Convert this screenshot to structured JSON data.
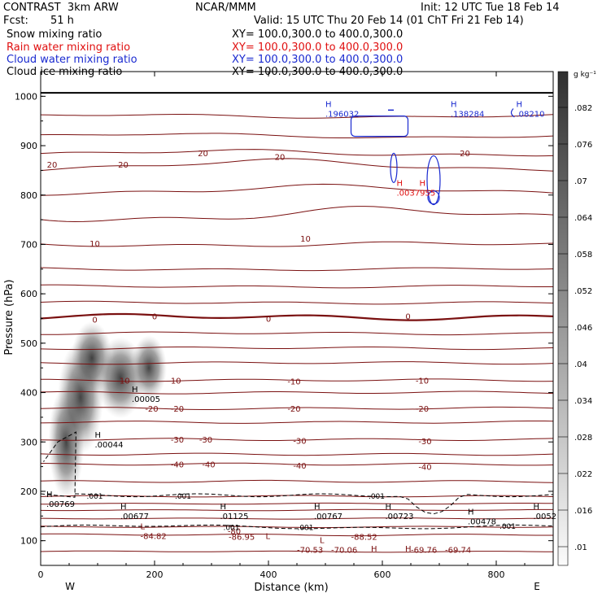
{
  "header": {
    "title_left": "CONTRAST  3km ARW",
    "org": "NCAR/MMM",
    "init": "Init: 12 UTC Tue 18 Feb 14",
    "fcst_label": "Fcst:",
    "fcst_value": "51 h",
    "valid": "Valid: 15 UTC Thu 20 Feb 14 (01 ChT Fri 21 Feb 14)"
  },
  "legend": [
    {
      "name": "Snow mixing ratio",
      "xy": "XY= 100.0,300.0 to 400.0,300.0",
      "color": "#000000"
    },
    {
      "name": "Rain water mixing ratio",
      "xy": "XY= 100.0,300.0 to 400.0,300.0",
      "color": "#e01010"
    },
    {
      "name": "Cloud water mixing ratio",
      "xy": "XY= 100.0,300.0 to 400.0,300.0",
      "color": "#1a2ad0"
    },
    {
      "name": "Cloud ice mixing ratio",
      "xy": "XY= 100.0,300.0 to 400.0,300.0",
      "color": "#000000"
    }
  ],
  "colorbar": {
    "unit": "g kg⁻¹",
    "labels": [
      ".082",
      ".076",
      ".07",
      ".064",
      ".058",
      ".052",
      ".046",
      ".04",
      ".034",
      ".028",
      ".022",
      ".016",
      ".01"
    ]
  },
  "chart_data": {
    "type": "contour",
    "title": "",
    "xlabel": "Distance (km)",
    "ylabel": "Pressure (hPa)",
    "xlim": [
      0,
      900
    ],
    "ylim": [
      1050,
      50
    ],
    "x_ticks": [
      "0",
      "200",
      "400",
      "600",
      "800"
    ],
    "x_tick_values": [
      0,
      200,
      400,
      600,
      800
    ],
    "y_ticks": [
      "100",
      "200",
      "300",
      "400",
      "500",
      "600",
      "700",
      "800",
      "900",
      "1000"
    ],
    "y_tick_values": [
      100,
      200,
      300,
      400,
      500,
      600,
      700,
      800,
      900,
      1000
    ],
    "west_label": "W",
    "east_label": "E",
    "temperature_contour_color": "#7a1010",
    "temperature_labels": [
      {
        "text": "-80",
        "x": 340,
        "p": 120
      },
      {
        "text": "-40",
        "x": 240,
        "p": 255
      },
      {
        "text": "-40",
        "x": 295,
        "p": 255
      },
      {
        "text": "-40",
        "x": 455,
        "p": 253
      },
      {
        "text": "-40",
        "x": 675,
        "p": 250
      },
      {
        "text": "-30",
        "x": 240,
        "p": 305
      },
      {
        "text": "-30",
        "x": 290,
        "p": 305
      },
      {
        "text": "-30",
        "x": 455,
        "p": 303
      },
      {
        "text": "-30",
        "x": 675,
        "p": 302
      },
      {
        "text": "-20",
        "x": 195,
        "p": 368
      },
      {
        "text": "-20",
        "x": 240,
        "p": 368
      },
      {
        "text": "-20",
        "x": 445,
        "p": 368
      },
      {
        "text": "-20",
        "x": 670,
        "p": 368
      },
      {
        "text": "-10",
        "x": 145,
        "p": 425
      },
      {
        "text": "-10",
        "x": 235,
        "p": 425
      },
      {
        "text": "-10",
        "x": 445,
        "p": 423
      },
      {
        "text": "-10",
        "x": 670,
        "p": 425
      },
      {
        "text": "0",
        "x": 95,
        "p": 548
      },
      {
        "text": "0",
        "x": 200,
        "p": 555
      },
      {
        "text": "0",
        "x": 400,
        "p": 550
      },
      {
        "text": "0",
        "x": 645,
        "p": 555
      },
      {
        "text": "10",
        "x": 95,
        "p": 702
      },
      {
        "text": "10",
        "x": 465,
        "p": 712
      },
      {
        "text": "20",
        "x": 20,
        "p": 862
      },
      {
        "text": "20",
        "x": 145,
        "p": 862
      },
      {
        "text": "20",
        "x": 285,
        "p": 885
      },
      {
        "text": "20",
        "x": 420,
        "p": 878
      },
      {
        "text": "20",
        "x": 745,
        "p": 885
      }
    ],
    "highs_lows": [
      {
        "mark": "H",
        "value": "",
        "x": 580,
        "p": 75,
        "color": "#7a1010"
      },
      {
        "mark": "H",
        "value": "",
        "x": 640,
        "p": 75,
        "color": "#7a1010"
      },
      {
        "mark": "L",
        "value": "",
        "x": 395,
        "p": 100,
        "color": "#7a1010"
      },
      {
        "mark": "L",
        "value": "",
        "x": 490,
        "p": 92,
        "color": "#7a1010"
      },
      {
        "mark": "L",
        "value": "-84.82",
        "x": 175,
        "p": 120,
        "color": "#7a1010"
      },
      {
        "mark": "",
        "value": "-86.95",
        "x": 330,
        "p": 118,
        "color": "#7a1010"
      },
      {
        "mark": "",
        "value": "-70.53",
        "x": 450,
        "p": 92,
        "color": "#7a1010"
      },
      {
        "mark": "",
        "value": "-70.06",
        "x": 510,
        "p": 92,
        "color": "#7a1010"
      },
      {
        "mark": "",
        "value": "-88.52",
        "x": 545,
        "p": 118,
        "color": "#7a1010"
      },
      {
        "mark": "",
        "value": "-69.76",
        "x": 650,
        "p": 92,
        "color": "#7a1010"
      },
      {
        "mark": "",
        "value": "-69.74",
        "x": 710,
        "p": 92,
        "color": "#7a1010"
      },
      {
        "mark": "H",
        "value": ".00677",
        "x": 140,
        "p": 160,
        "color": "#000000"
      },
      {
        "mark": "H",
        "value": ".01125",
        "x": 315,
        "p": 160,
        "color": "#000000"
      },
      {
        "mark": "H",
        "value": ".00767",
        "x": 480,
        "p": 160,
        "color": "#000000"
      },
      {
        "mark": "H",
        "value": ".00723",
        "x": 605,
        "p": 160,
        "color": "#000000"
      },
      {
        "mark": "H",
        "value": ".00478",
        "x": 750,
        "p": 150,
        "color": "#000000"
      },
      {
        "mark": "H",
        "value": ".0052",
        "x": 865,
        "p": 160,
        "color": "#000000"
      },
      {
        "mark": "H",
        "value": ".00769",
        "x": 10,
        "p": 185,
        "color": "#000000"
      },
      {
        "mark": "H",
        "value": ".00044",
        "x": 95,
        "p": 305,
        "color": "#000000"
      },
      {
        "mark": "H",
        "value": ".00005",
        "x": 160,
        "p": 398,
        "color": "#000000"
      },
      {
        "mark": "H",
        "value": ".0037955",
        "x": 625,
        "p": 815,
        "color": "#e01010"
      },
      {
        "mark": "H",
        "value": "",
        "x": 665,
        "p": 815,
        "color": "#e01010"
      },
      {
        "mark": "H",
        "value": ".196032",
        "x": 500,
        "p": 975,
        "color": "#1a2ad0"
      },
      {
        "mark": "H",
        "value": ".138284",
        "x": 720,
        "p": 975,
        "color": "#1a2ad0"
      },
      {
        "mark": "H",
        "value": ".08210",
        "x": 835,
        "p": 975,
        "color": "#1a2ad0"
      }
    ],
    "ice_labels": [
      {
        "text": ".001",
        "x": 335,
        "p": 128
      },
      {
        "text": ".001",
        "x": 465,
        "p": 128
      },
      {
        "text": ".001",
        "x": 820,
        "p": 131
      },
      {
        "text": ".001",
        "x": 95,
        "p": 192
      },
      {
        "text": ".001",
        "x": 250,
        "p": 192
      },
      {
        "text": ".001",
        "x": 590,
        "p": 192
      }
    ],
    "snow_max": ".082"
  }
}
